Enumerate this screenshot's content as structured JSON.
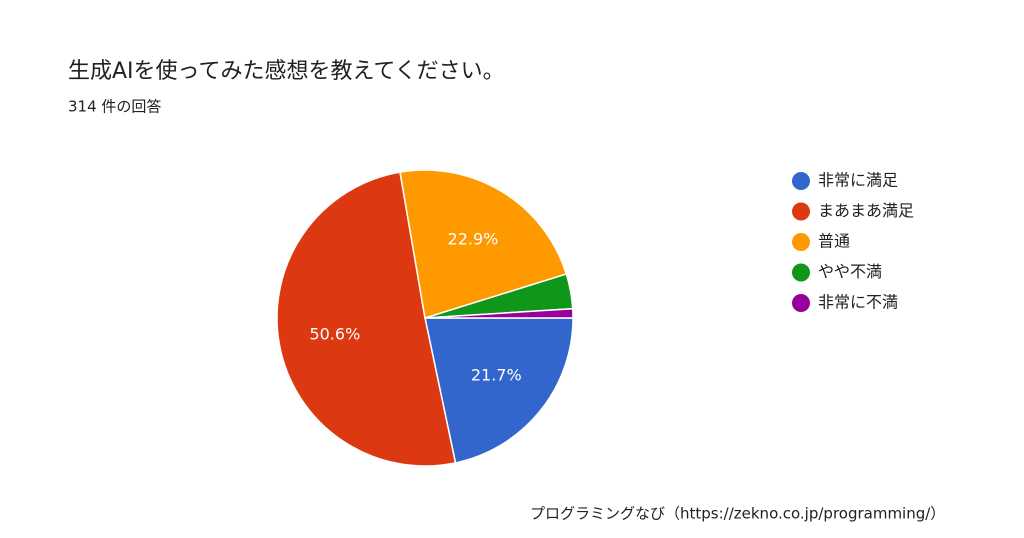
{
  "chart_data": {
    "type": "pie",
    "title": "生成AIを使ってみた感想を教えてください。",
    "subtitle": "314 件の回答",
    "categories": [
      "非常に満足",
      "まあまあ満足",
      "普通",
      "やや不満",
      "非常に不満"
    ],
    "values": [
      21.7,
      50.6,
      22.9,
      3.8,
      1.0
    ],
    "value_labels": [
      "21.7%",
      "50.6%",
      "22.9%",
      null,
      null
    ],
    "colors": [
      "#3366cc",
      "#dc3912",
      "#ff9900",
      "#109618",
      "#990099"
    ],
    "legend": "right"
  },
  "footer": "プログラミングなび（https://zekno.co.jp/programming/）"
}
